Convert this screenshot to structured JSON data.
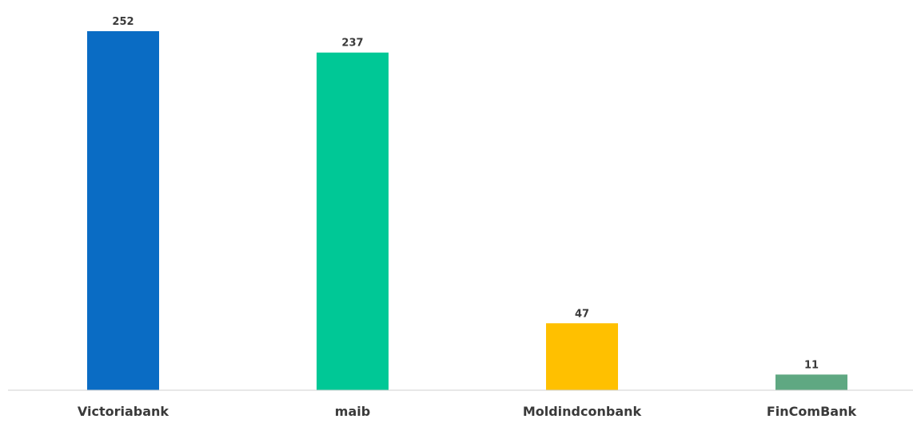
{
  "chart_data": {
    "type": "bar",
    "categories": [
      "Victoriabank",
      "maib",
      "Moldindconbank",
      "FinComBank"
    ],
    "values": [
      252,
      237,
      47,
      11
    ],
    "data_labels": [
      "252",
      "237",
      "47",
      "11"
    ],
    "colors": [
      "#0a6cc4",
      "#00c896",
      "#ffc000",
      "#5fa882"
    ],
    "axis_color": "#d0d0d0",
    "ylim": [
      0,
      252
    ],
    "grid": false,
    "legend": "none"
  }
}
